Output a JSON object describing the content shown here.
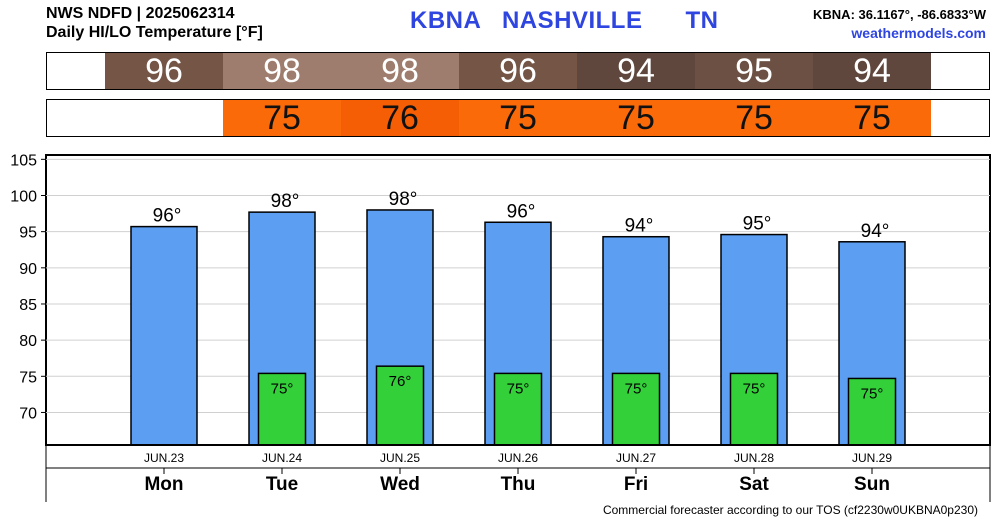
{
  "header": {
    "line1": "NWS NDFD | 2025062314",
    "line2": "Daily HI/LO Temperature [°F]",
    "station": "KBNA   NASHVILLE      TN",
    "coords": "KBNA: 36.1167°, -86.6833°W",
    "site": "weathermodels.com"
  },
  "footer": "Commercial forecaster according to our TOS (cf2230w0UKBNA0p230)",
  "hi_strip": [
    "96",
    "98",
    "98",
    "96",
    "94",
    "95",
    "94"
  ],
  "lo_strip": [
    "",
    "75",
    "76",
    "75",
    "75",
    "75",
    "75"
  ],
  "colors": {
    "hi_cells": [
      "#745546",
      "#9f7d6e",
      "#9f7d6e",
      "#745546",
      "#5f473d",
      "#6b5043",
      "#5f473d"
    ],
    "lo_cells": [
      "",
      "#fa6a08",
      "#f55e04",
      "#fa6a08",
      "#fa6a08",
      "#fa6a08",
      "#fa6a08"
    ],
    "hi_bar": "#5b9ef2",
    "lo_bar": "#33d03a"
  },
  "chart_data": {
    "type": "bar",
    "categories": [
      "JUN.23",
      "JUN.24",
      "JUN.25",
      "JUN.26",
      "JUN.27",
      "JUN.28",
      "JUN.29"
    ],
    "weekdays": [
      "Mon",
      "Tue",
      "Wed",
      "Thu",
      "Fri",
      "Sat",
      "Sun"
    ],
    "series": [
      {
        "values": [
          96,
          98,
          98,
          96,
          94,
          95,
          94
        ],
        "value_labels": [
          "96°",
          "98°",
          "98°",
          "96°",
          "94°",
          "95°",
          "94°"
        ]
      },
      {
        "values": [
          null,
          75,
          76,
          75,
          75,
          75,
          75
        ],
        "value_labels": [
          "",
          "75°",
          "76°",
          "75°",
          "75°",
          "75°",
          "75°"
        ]
      }
    ],
    "hi_plot": [
      95.7,
      97.7,
      98.0,
      96.3,
      94.3,
      94.6,
      93.6
    ],
    "lo_plot": [
      null,
      75.4,
      76.4,
      75.4,
      75.4,
      75.4,
      74.7
    ],
    "yticks": [
      70,
      75,
      80,
      85,
      90,
      95,
      100,
      105
    ],
    "ylim": [
      65.5,
      105.6
    ],
    "grid": true
  }
}
